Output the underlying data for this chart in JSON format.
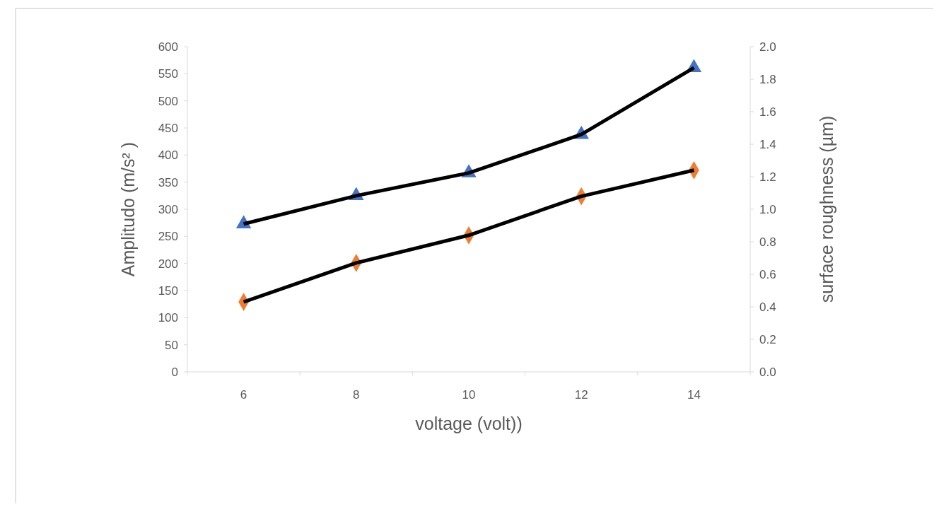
{
  "chart_data": {
    "type": "line",
    "xlabel": "voltage (volt))",
    "ylabel": "Amplitudo (m/s² )",
    "y2label": "surface roughness  (µm)",
    "categories": [
      "6",
      "8",
      "10",
      "12",
      "14"
    ],
    "series": [
      {
        "color": "#4472c4",
        "marker": "triangle",
        "values": [
          273,
          325,
          367,
          438,
          561
        ]
      },
      {
        "color": "#ed7d31",
        "marker": "diamond",
        "axis": "y2",
        "values": [
          0.43,
          0.67,
          0.84,
          1.08,
          1.24
        ]
      }
    ],
    "ylim": [
      0,
      600
    ],
    "yticks": [
      0,
      50,
      100,
      150,
      200,
      250,
      300,
      350,
      400,
      450,
      500,
      550,
      600
    ],
    "y2lim": [
      0,
      2
    ],
    "y2ticks": [
      {
        "value": 0,
        "label": "0.0"
      },
      {
        "value": 0.2,
        "label": "0.2"
      },
      {
        "value": 0.4,
        "label": "0.4"
      },
      {
        "value": 0.6,
        "label": "0.6"
      },
      {
        "value": 0.8,
        "label": "0.8"
      },
      {
        "value": 1,
        "label": "1.0"
      },
      {
        "value": 1.2,
        "label": "1.2"
      },
      {
        "value": 1.4,
        "label": "1.4"
      },
      {
        "value": 1.6,
        "label": "1.6"
      },
      {
        "value": 1.8,
        "label": "1.8"
      },
      {
        "value": 2,
        "label": "2.0"
      }
    ],
    "grid": false
  }
}
